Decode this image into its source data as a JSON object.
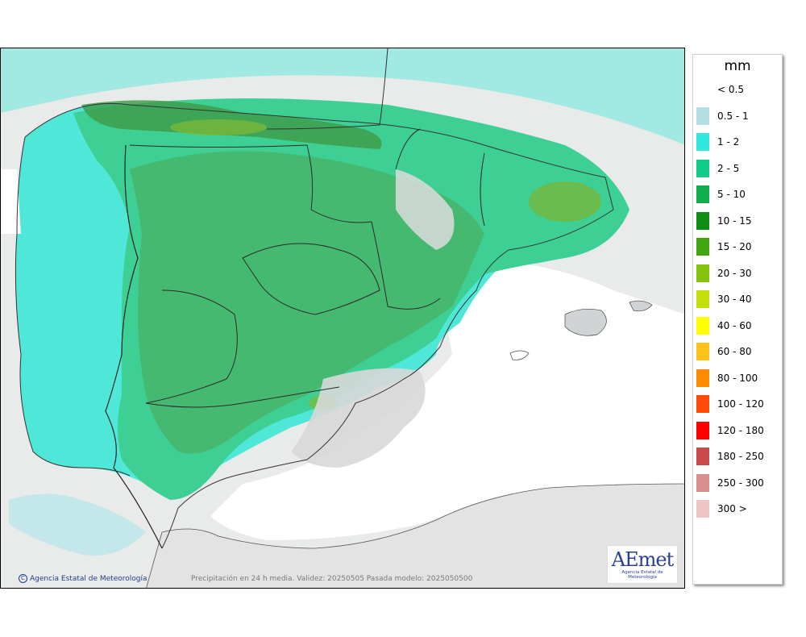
{
  "legend": {
    "unit": "mm",
    "items": [
      {
        "label": "< 0.5",
        "color": "#ffffff"
      },
      {
        "label": "0.5 - 1",
        "color": "#b4dfe5"
      },
      {
        "label": "1 - 2",
        "color": "#2ee8e0"
      },
      {
        "label": "2 - 5",
        "color": "#12cc8a"
      },
      {
        "label": "5 - 10",
        "color": "#0fae4a"
      },
      {
        "label": "10 - 15",
        "color": "#0b8e12"
      },
      {
        "label": "15 - 20",
        "color": "#3fa810"
      },
      {
        "label": "20 - 30",
        "color": "#84c40e"
      },
      {
        "label": "30 - 40",
        "color": "#c4e00c"
      },
      {
        "label": "40 - 60",
        "color": "#ffff00"
      },
      {
        "label": "60 - 80",
        "color": "#ffc21a"
      },
      {
        "label": "80 - 100",
        "color": "#ff8a00"
      },
      {
        "label": "100 - 120",
        "color": "#ff4a0a"
      },
      {
        "label": "120 - 180",
        "color": "#ff0000"
      },
      {
        "label": "180 - 250",
        "color": "#c94a4a"
      },
      {
        "label": "250 - 300",
        "color": "#da8e8e"
      },
      {
        "label": "300 >",
        "color": "#efc4c4"
      }
    ]
  },
  "map": {
    "copyright": "Agencia Estatal de Meteorología",
    "caption": "Precipitación en 24 h media. Validez: 20250505 Pasada modelo: 2025050500",
    "logo_text": "AEmet",
    "logo_sub": "Agencia Estatal de Meteorología",
    "colors": {
      "sea_light": "#e9eaea",
      "dry_land": "#dcdcdc",
      "class_0_5_1": "#b4dfe5",
      "class_1_2": "#5fe8dc",
      "class_2_5": "#3fcf95",
      "class_5_10": "#45b26a",
      "class_10_15": "#3d9a45",
      "class_15_20": "#6fae2a"
    }
  }
}
